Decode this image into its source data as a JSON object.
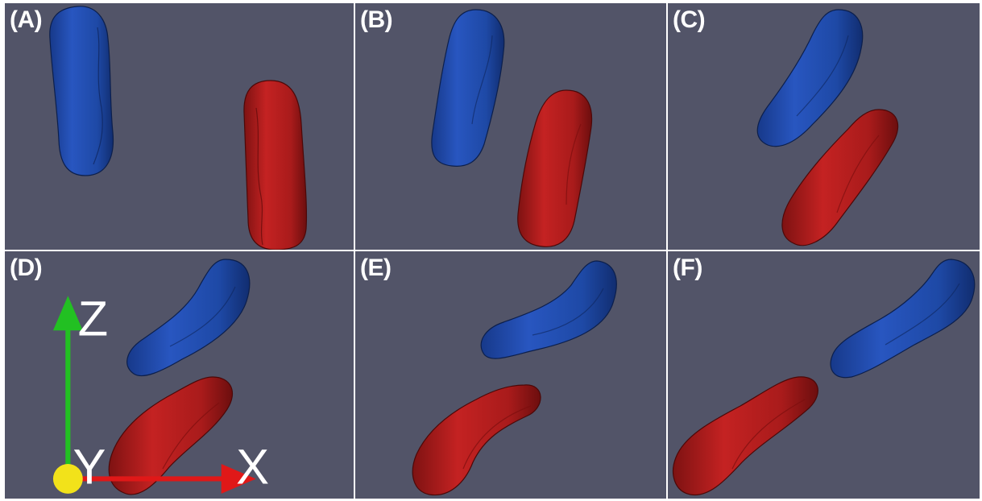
{
  "figure": {
    "panels": [
      {
        "label": "(A)"
      },
      {
        "label": "(B)"
      },
      {
        "label": "(C)"
      },
      {
        "label": "(D)"
      },
      {
        "label": "(E)"
      },
      {
        "label": "(F)"
      }
    ],
    "colors": {
      "background": "#525468",
      "blue_body": "#1f4fb0",
      "red_body": "#b51d1d",
      "divider": "#a8aab4"
    },
    "axes_triad": {
      "z_label": "Z",
      "y_label": "Y",
      "x_label": "X",
      "z_color": "#22c022",
      "y_color": "#f2e21a",
      "x_color": "#e01818"
    }
  }
}
